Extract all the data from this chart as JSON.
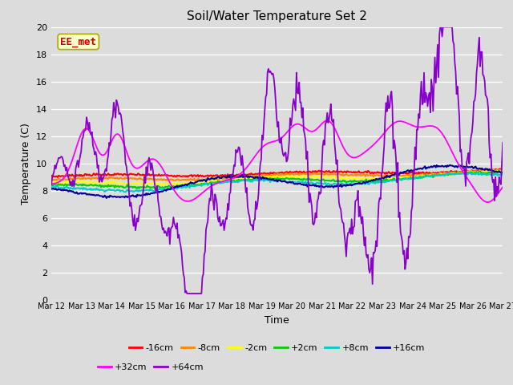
{
  "title": "Soil/Water Temperature Set 2",
  "xlabel": "Time",
  "ylabel": "Temperature (C)",
  "ylim": [
    0,
    20
  ],
  "background_color": "#dcdcdc",
  "annotation_text": "EE_met",
  "annotation_color": "#cc0000",
  "annotation_bg": "#ffffcc",
  "annotation_border": "#aaaa00",
  "colors": {
    "-16cm": "#ff0000",
    "-8cm": "#ff8800",
    "-2cm": "#ffff00",
    "+2cm": "#00cc00",
    "+8cm": "#00cccc",
    "+16cm": "#000099",
    "+32cm": "#ff00ff",
    "+64cm": "#8800cc"
  },
  "x_tick_labels": [
    "Mar 12",
    "Mar 13",
    "Mar 14",
    "Mar 15",
    "Mar 16",
    "Mar 17",
    "Mar 18",
    "Mar 19",
    "Mar 20",
    "Mar 21",
    "Mar 22",
    "Mar 23",
    "Mar 24",
    "Mar 25",
    "Mar 26",
    "Mar 27"
  ],
  "yticks": [
    0,
    2,
    4,
    6,
    8,
    10,
    12,
    14,
    16,
    18,
    20
  ],
  "n_points": 500
}
